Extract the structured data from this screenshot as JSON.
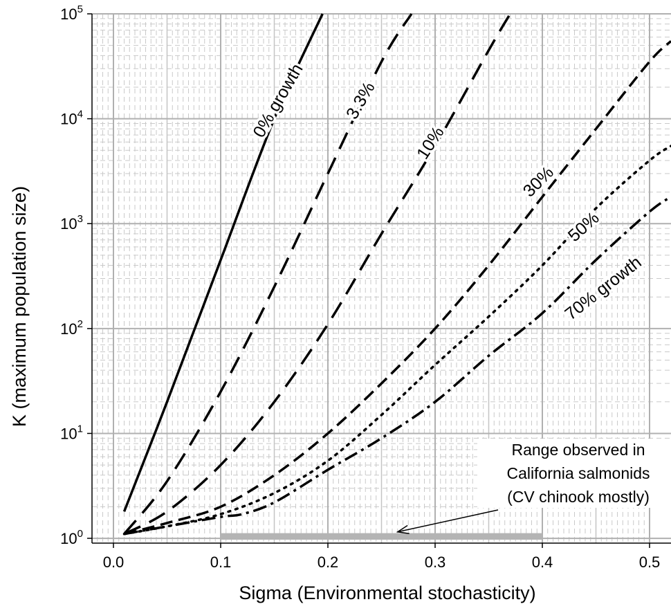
{
  "chart_data": {
    "type": "line",
    "xlabel": "Sigma (Environmental stochasticity)",
    "ylabel": "K (maximum population size)",
    "xlim": [
      -0.02,
      0.52
    ],
    "ylim": [
      0.9,
      100000
    ],
    "yscale": "log",
    "grid": true,
    "x_ticks": [
      "0.0",
      "0.1",
      "0.2",
      "0.3",
      "0.4",
      "0.5"
    ],
    "y_ticks": [
      {
        "base": "10",
        "exp": "0"
      },
      {
        "base": "10",
        "exp": "1"
      },
      {
        "base": "10",
        "exp": "2"
      },
      {
        "base": "10",
        "exp": "3"
      },
      {
        "base": "10",
        "exp": "4"
      },
      {
        "base": "10",
        "exp": "5"
      }
    ],
    "series": [
      {
        "name": "0% growth",
        "style": "solid",
        "x": [
          0.01,
          0.05,
          0.1,
          0.15,
          0.195
        ],
        "y": [
          1.8,
          20,
          450,
          10000,
          100000
        ]
      },
      {
        "name": "3.3%",
        "style": "dash",
        "x": [
          0.01,
          0.05,
          0.1,
          0.15,
          0.2,
          0.25,
          0.278
        ],
        "y": [
          1.1,
          3.5,
          25,
          250,
          3000,
          35000,
          100000
        ]
      },
      {
        "name": "10%",
        "style": "dash",
        "x": [
          0.01,
          0.05,
          0.1,
          0.15,
          0.2,
          0.25,
          0.3,
          0.35,
          0.37
        ],
        "y": [
          1.1,
          1.8,
          5,
          20,
          110,
          800,
          5500,
          45000,
          100000
        ]
      },
      {
        "name": "30%",
        "style": "short-dash",
        "x": [
          0.01,
          0.05,
          0.1,
          0.15,
          0.2,
          0.25,
          0.3,
          0.35,
          0.4,
          0.45,
          0.5,
          0.52
        ],
        "y": [
          1.1,
          1.4,
          2,
          4,
          10,
          30,
          100,
          400,
          1800,
          8000,
          35000,
          55000
        ]
      },
      {
        "name": "50%",
        "style": "dot",
        "x": [
          0.01,
          0.05,
          0.1,
          0.15,
          0.2,
          0.25,
          0.3,
          0.35,
          0.4,
          0.45,
          0.5,
          0.52
        ],
        "y": [
          1.1,
          1.3,
          1.7,
          2.7,
          5.5,
          15,
          45,
          130,
          400,
          1400,
          4000,
          5500
        ]
      },
      {
        "name": "70% growth",
        "style": "dash-dot",
        "x": [
          0.01,
          0.05,
          0.1,
          0.12,
          0.15,
          0.2,
          0.25,
          0.3,
          0.35,
          0.4,
          0.45,
          0.5,
          0.52
        ],
        "y": [
          1.1,
          1.3,
          1.6,
          1.7,
          2.2,
          4.5,
          9,
          20,
          55,
          140,
          450,
          1300,
          1800
        ]
      }
    ],
    "curve_labels": [
      {
        "text": "0% growth",
        "x": 0.158,
        "y": 14000,
        "angle": -60
      },
      {
        "text": "3.3%",
        "x": 0.235,
        "y": 14000,
        "angle": -60
      },
      {
        "text": "10%",
        "x": 0.3,
        "y": 5500,
        "angle": -57
      },
      {
        "text": "30%",
        "x": 0.4,
        "y": 2300,
        "angle": -45
      },
      {
        "text": "50%",
        "x": 0.442,
        "y": 850,
        "angle": -42
      },
      {
        "text": "70% growth",
        "x": 0.46,
        "y": 220,
        "angle": -38
      }
    ],
    "range_bar": {
      "from": 0.1,
      "to": 0.4,
      "color": "#b4b4b4"
    },
    "annotation": {
      "lines": [
        "Range observed in",
        "California salmonids",
        "(CV chinook mostly)"
      ],
      "arrow_to_x": 0.265
    }
  }
}
